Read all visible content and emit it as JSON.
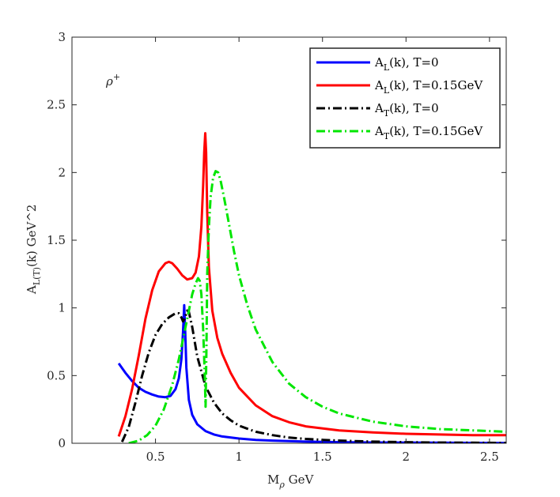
{
  "chart_data": {
    "type": "line",
    "title": "",
    "annotation": "ρ",
    "annotation_sup": "+",
    "xlabel": "M",
    "xlabel_sub": "ρ",
    "xlabel_unit": " GeV",
    "ylabel": "A",
    "ylabel_sub": "L(T)",
    "ylabel_rest": "(k) GeV^2",
    "xlim": [
      0.0,
      2.6
    ],
    "ylim": [
      0,
      3
    ],
    "xticks": [
      0.5,
      1,
      1.5,
      2,
      2.5
    ],
    "xtick_labels": [
      "0.5",
      "1",
      "1.5",
      "2",
      "2.5"
    ],
    "yticks": [
      0,
      0.5,
      1,
      1.5,
      2,
      2.5,
      3
    ],
    "ytick_labels": [
      "0",
      "0.5",
      "1",
      "1.5",
      "2",
      "2.5",
      "3"
    ],
    "legend_position": "top-right",
    "series": [
      {
        "name": "A_L(k), T=0",
        "legend_main": "A",
        "legend_sub": "L",
        "legend_rest": "(k), T=0",
        "color": "#0000ff",
        "style": "solid",
        "x": [
          0.28,
          0.32,
          0.36,
          0.4,
          0.44,
          0.48,
          0.52,
          0.56,
          0.59,
          0.62,
          0.64,
          0.655,
          0.665,
          0.672,
          0.678,
          0.685,
          0.7,
          0.72,
          0.75,
          0.8,
          0.85,
          0.9,
          1.0,
          1.1,
          1.2,
          1.4,
          1.6,
          1.8,
          2.0,
          2.2,
          2.4,
          2.6
        ],
        "y": [
          0.59,
          0.52,
          0.46,
          0.41,
          0.38,
          0.36,
          0.345,
          0.34,
          0.35,
          0.4,
          0.48,
          0.62,
          0.82,
          1.02,
          0.82,
          0.56,
          0.32,
          0.21,
          0.14,
          0.09,
          0.065,
          0.05,
          0.035,
          0.025,
          0.02,
          0.012,
          0.008,
          0.006,
          0.005,
          0.004,
          0.003,
          0.002
        ]
      },
      {
        "name": "A_L(k), T=0.15GeV",
        "legend_main": "A",
        "legend_sub": "L",
        "legend_rest": "(k), T=0.15GeV",
        "color": "#ff0000",
        "style": "solid",
        "x": [
          0.28,
          0.32,
          0.36,
          0.4,
          0.44,
          0.48,
          0.52,
          0.56,
          0.58,
          0.6,
          0.63,
          0.66,
          0.69,
          0.72,
          0.74,
          0.76,
          0.775,
          0.785,
          0.792,
          0.798,
          0.803,
          0.81,
          0.82,
          0.84,
          0.87,
          0.9,
          0.95,
          1.0,
          1.1,
          1.2,
          1.3,
          1.4,
          1.6,
          1.8,
          2.0,
          2.2,
          2.4,
          2.6
        ],
        "y": [
          0.05,
          0.2,
          0.4,
          0.65,
          0.92,
          1.13,
          1.27,
          1.33,
          1.34,
          1.33,
          1.29,
          1.24,
          1.21,
          1.22,
          1.26,
          1.38,
          1.6,
          1.9,
          2.15,
          2.29,
          2.15,
          1.7,
          1.3,
          0.98,
          0.78,
          0.66,
          0.52,
          0.41,
          0.28,
          0.2,
          0.155,
          0.125,
          0.095,
          0.08,
          0.07,
          0.065,
          0.06,
          0.06
        ]
      },
      {
        "name": "A_T(k), T=0",
        "legend_main": "A",
        "legend_sub": "T",
        "legend_rest": "(k), T=0",
        "color": "#000000",
        "style": "dashdot",
        "x": [
          0.3,
          0.34,
          0.38,
          0.42,
          0.46,
          0.5,
          0.54,
          0.58,
          0.62,
          0.64,
          0.655,
          0.665,
          0.675,
          0.69,
          0.7,
          0.72,
          0.75,
          0.8,
          0.85,
          0.9,
          0.95,
          1.0,
          1.1,
          1.2,
          1.3,
          1.4,
          1.5,
          1.6,
          1.8,
          2.0,
          2.2,
          2.4,
          2.6
        ],
        "y": [
          0.01,
          0.12,
          0.3,
          0.5,
          0.67,
          0.8,
          0.88,
          0.93,
          0.96,
          0.96,
          0.93,
          0.9,
          0.92,
          0.98,
          0.97,
          0.86,
          0.64,
          0.42,
          0.3,
          0.22,
          0.17,
          0.13,
          0.085,
          0.06,
          0.042,
          0.032,
          0.025,
          0.02,
          0.012,
          0.008,
          0.005,
          0.004,
          0.003
        ]
      },
      {
        "name": "A_T(k), T=0.15GeV",
        "legend_main": "A",
        "legend_sub": "T",
        "legend_rest": "(k), T=0.15GeV",
        "color": "#00e600",
        "style": "dashdot",
        "x": [
          0.34,
          0.4,
          0.45,
          0.5,
          0.55,
          0.6,
          0.64,
          0.67,
          0.7,
          0.72,
          0.74,
          0.755,
          0.765,
          0.775,
          0.785,
          0.795,
          0.8,
          0.805,
          0.81,
          0.82,
          0.83,
          0.845,
          0.86,
          0.875,
          0.89,
          0.91,
          0.94,
          0.97,
          1.0,
          1.05,
          1.1,
          1.2,
          1.3,
          1.4,
          1.5,
          1.6,
          1.8,
          2.0,
          2.2,
          2.4,
          2.6
        ],
        "y": [
          0.0,
          0.02,
          0.06,
          0.13,
          0.25,
          0.43,
          0.62,
          0.8,
          0.98,
          1.1,
          1.18,
          1.22,
          1.2,
          1.1,
          0.85,
          0.5,
          0.27,
          0.7,
          1.25,
          1.6,
          1.82,
          1.96,
          2.01,
          2.0,
          1.94,
          1.82,
          1.62,
          1.42,
          1.24,
          1.02,
          0.84,
          0.6,
          0.44,
          0.34,
          0.27,
          0.22,
          0.16,
          0.125,
          0.105,
          0.095,
          0.085
        ]
      }
    ]
  }
}
